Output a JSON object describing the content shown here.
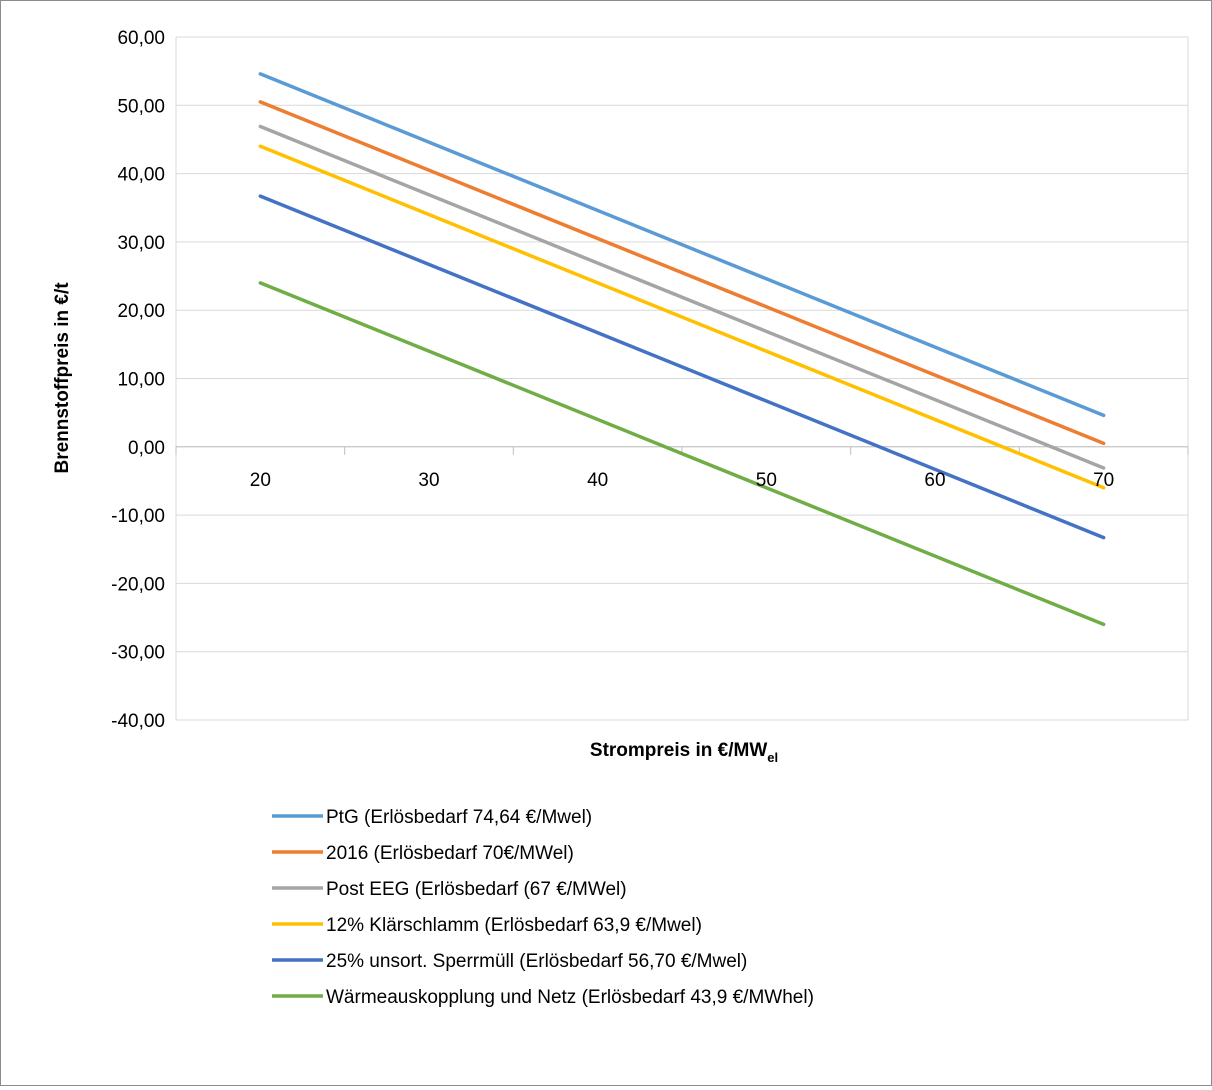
{
  "chart_data": {
    "type": "line",
    "xlabel": "Strompreis in €/MW",
    "xlabel_sub": "el",
    "ylabel": "Brennstoffpreis in €/t",
    "x": [
      20,
      70
    ],
    "x_ticks": [
      "20",
      "30",
      "40",
      "50",
      "60",
      "70"
    ],
    "y_ticks": [
      "60,00",
      "50,00",
      "40,00",
      "30,00",
      "20,00",
      "10,00",
      "0,00",
      "-10,00",
      "-20,00",
      "-30,00",
      "-40,00"
    ],
    "xlim": [
      15,
      75
    ],
    "ylim": [
      -40,
      60
    ],
    "grid": true,
    "legend_position": "bottom",
    "series": [
      {
        "name": "PtG (Erlösbedarf 74,64 €/Mwel)",
        "color": "#5B9BD5",
        "values": [
          54.6,
          4.6
        ]
      },
      {
        "name": "2016 (Erlösbedarf 70€/MWel)",
        "color": "#ED7D31",
        "values": [
          50.5,
          0.5
        ]
      },
      {
        "name": "Post EEG (Erlösbedarf (67 €/MWel)",
        "color": "#A5A5A5",
        "values": [
          46.9,
          -3.1
        ]
      },
      {
        "name": "12% Klärschlamm (Erlösbedarf 63,9 €/Mwel)",
        "color": "#FFC000",
        "values": [
          44.0,
          -6.0
        ]
      },
      {
        "name": "25% unsort. Sperrmüll (Erlösbedarf 56,70 €/Mwel)",
        "color": "#4472C4",
        "values": [
          36.7,
          -13.3
        ]
      },
      {
        "name": "Wärmeauskopplung und Netz (Erlösbedarf 43,9 €/MWhel)",
        "color": "#70AD47",
        "values": [
          24.0,
          -26.0
        ]
      }
    ]
  }
}
